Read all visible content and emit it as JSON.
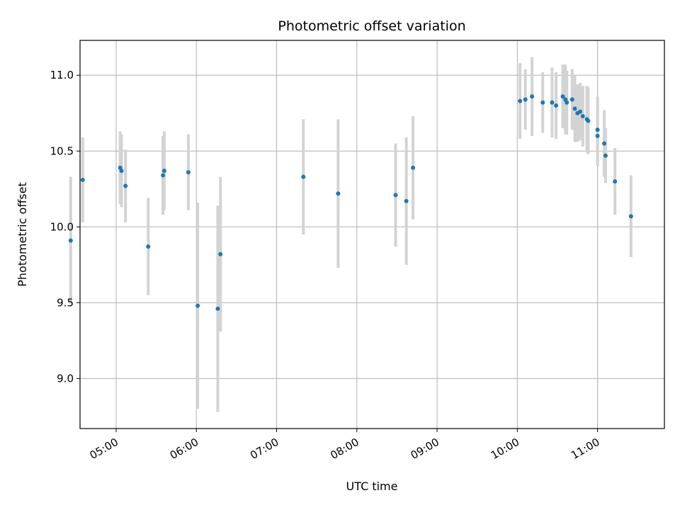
{
  "chart_data": {
    "type": "scatter",
    "title": "Photometric offset variation",
    "xlabel": "UTC time",
    "ylabel": "Photometric offset",
    "xlim": [
      "04:33",
      "11:50"
    ],
    "ylim": [
      8.67,
      11.23
    ],
    "x_ticks": [
      "05:00",
      "06:00",
      "07:00",
      "08:00",
      "09:00",
      "10:00",
      "11:00"
    ],
    "y_ticks": [
      9.0,
      9.5,
      10.0,
      10.5,
      11.0
    ],
    "y_tick_labels": [
      "9.0",
      "9.5",
      "10.0",
      "10.5",
      "11.0"
    ],
    "grid": true,
    "marker_color": "#1f77b4",
    "errorbar_color": "#d3d3d3",
    "points": [
      {
        "time": "04:26",
        "y": 9.91,
        "err": 0.42
      },
      {
        "time": "04:35",
        "y": 10.31,
        "err": 0.28
      },
      {
        "time": "05:03",
        "y": 10.39,
        "err": 0.24
      },
      {
        "time": "05:04",
        "y": 10.37,
        "err": 0.24
      },
      {
        "time": "05:07",
        "y": 10.27,
        "err": 0.24
      },
      {
        "time": "05:24",
        "y": 9.87,
        "err": 0.32
      },
      {
        "time": "05:35",
        "y": 10.34,
        "err": 0.26
      },
      {
        "time": "05:36",
        "y": 10.37,
        "err": 0.26
      },
      {
        "time": "05:54",
        "y": 10.36,
        "err": 0.25
      },
      {
        "time": "06:01",
        "y": 9.48,
        "err": 0.68
      },
      {
        "time": "06:16",
        "y": 9.46,
        "err": 0.68
      },
      {
        "time": "06:18",
        "y": 9.82,
        "err": 0.51
      },
      {
        "time": "07:20",
        "y": 10.33,
        "err": 0.38
      },
      {
        "time": "07:46",
        "y": 10.22,
        "err": 0.49
      },
      {
        "time": "08:29",
        "y": 10.21,
        "err": 0.34
      },
      {
        "time": "08:37",
        "y": 10.17,
        "err": 0.42
      },
      {
        "time": "08:42",
        "y": 10.39,
        "err": 0.34
      },
      {
        "time": "10:02",
        "y": 10.83,
        "err": 0.25
      },
      {
        "time": "10:06",
        "y": 10.84,
        "err": 0.2
      },
      {
        "time": "10:11",
        "y": 10.86,
        "err": 0.26
      },
      {
        "time": "10:19",
        "y": 10.82,
        "err": 0.2
      },
      {
        "time": "10:26",
        "y": 10.82,
        "err": 0.23
      },
      {
        "time": "10:29",
        "y": 10.8,
        "err": 0.22
      },
      {
        "time": "10:34",
        "y": 10.86,
        "err": 0.21
      },
      {
        "time": "10:36",
        "y": 10.84,
        "err": 0.23
      },
      {
        "time": "10:37",
        "y": 10.82,
        "err": 0.21
      },
      {
        "time": "10:41",
        "y": 10.84,
        "err": 0.2
      },
      {
        "time": "10:43",
        "y": 10.78,
        "err": 0.22
      },
      {
        "time": "10:45",
        "y": 10.75,
        "err": 0.19
      },
      {
        "time": "10:47",
        "y": 10.76,
        "err": 0.19
      },
      {
        "time": "10:49",
        "y": 10.73,
        "err": 0.2
      },
      {
        "time": "10:52",
        "y": 10.71,
        "err": 0.22
      },
      {
        "time": "10:53",
        "y": 10.7,
        "err": 0.22
      },
      {
        "time": "11:00",
        "y": 10.64,
        "err": 0.22
      },
      {
        "time": "11:00",
        "y": 10.6,
        "err": 0.2
      },
      {
        "time": "11:05",
        "y": 10.55,
        "err": 0.22
      },
      {
        "time": "11:06",
        "y": 10.47,
        "err": 0.18
      },
      {
        "time": "11:13",
        "y": 10.3,
        "err": 0.22
      },
      {
        "time": "11:25",
        "y": 10.07,
        "err": 0.27
      }
    ]
  }
}
